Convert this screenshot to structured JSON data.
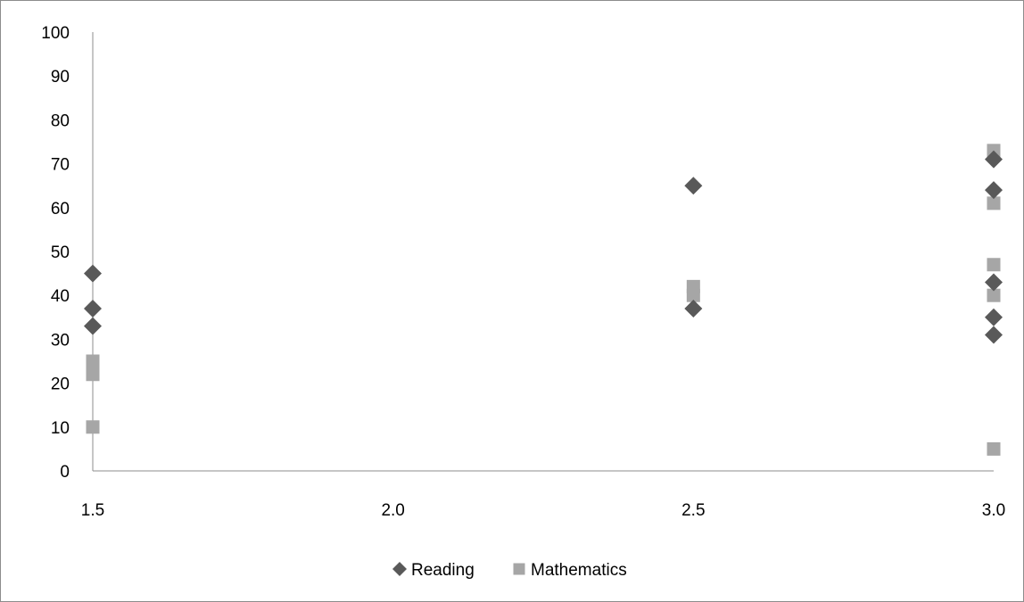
{
  "chart_data": {
    "type": "scatter",
    "title": "",
    "xlabel": "",
    "ylabel": "",
    "xlim": [
      1.5,
      3.0
    ],
    "ylim": [
      0,
      100
    ],
    "x_ticks": [
      "1.5",
      "2.0",
      "2.5",
      "3.0"
    ],
    "y_ticks": [
      "0",
      "10",
      "20",
      "30",
      "40",
      "50",
      "60",
      "70",
      "80",
      "90",
      "100"
    ],
    "grid": false,
    "legend_position": "bottom",
    "series": [
      {
        "name": "Reading",
        "marker": "diamond",
        "color": "#595959",
        "points": [
          {
            "x": 1.5,
            "y": 45
          },
          {
            "x": 1.5,
            "y": 37
          },
          {
            "x": 1.5,
            "y": 33
          },
          {
            "x": 2.5,
            "y": 65
          },
          {
            "x": 2.5,
            "y": 37
          },
          {
            "x": 3.0,
            "y": 71
          },
          {
            "x": 3.0,
            "y": 64
          },
          {
            "x": 3.0,
            "y": 43
          },
          {
            "x": 3.0,
            "y": 35
          },
          {
            "x": 3.0,
            "y": 31
          }
        ]
      },
      {
        "name": "Mathematics",
        "marker": "square",
        "color": "#a6a6a6",
        "points": [
          {
            "x": 1.5,
            "y": 25
          },
          {
            "x": 1.5,
            "y": 23
          },
          {
            "x": 1.5,
            "y": 22
          },
          {
            "x": 1.5,
            "y": 10
          },
          {
            "x": 2.5,
            "y": 42
          },
          {
            "x": 2.5,
            "y": 40
          },
          {
            "x": 3.0,
            "y": 73
          },
          {
            "x": 3.0,
            "y": 61
          },
          {
            "x": 3.0,
            "y": 47
          },
          {
            "x": 3.0,
            "y": 40
          },
          {
            "x": 3.0,
            "y": 5
          }
        ]
      }
    ]
  }
}
